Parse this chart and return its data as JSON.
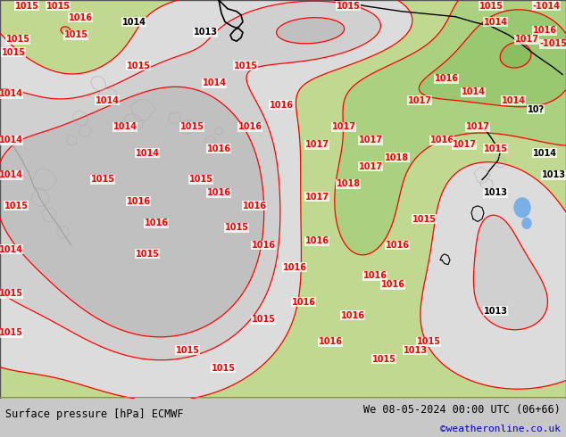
{
  "title_left": "Surface pressure [hPa] ECMWF",
  "title_right": "We 08-05-2024 00:00 UTC (06+66)",
  "credit": "©weatheronline.co.uk",
  "credit_color": "#0000cc",
  "bg_color": "#c8c8c8",
  "map_bg": "#dcdcdc",
  "green_fill": "#aad080",
  "white_bg": "#e8e8e8",
  "figsize": [
    6.34,
    4.9
  ],
  "dpi": 100,
  "bottom_bar_color": "#c8c8c8",
  "blue_fill": "#7ab0e8"
}
